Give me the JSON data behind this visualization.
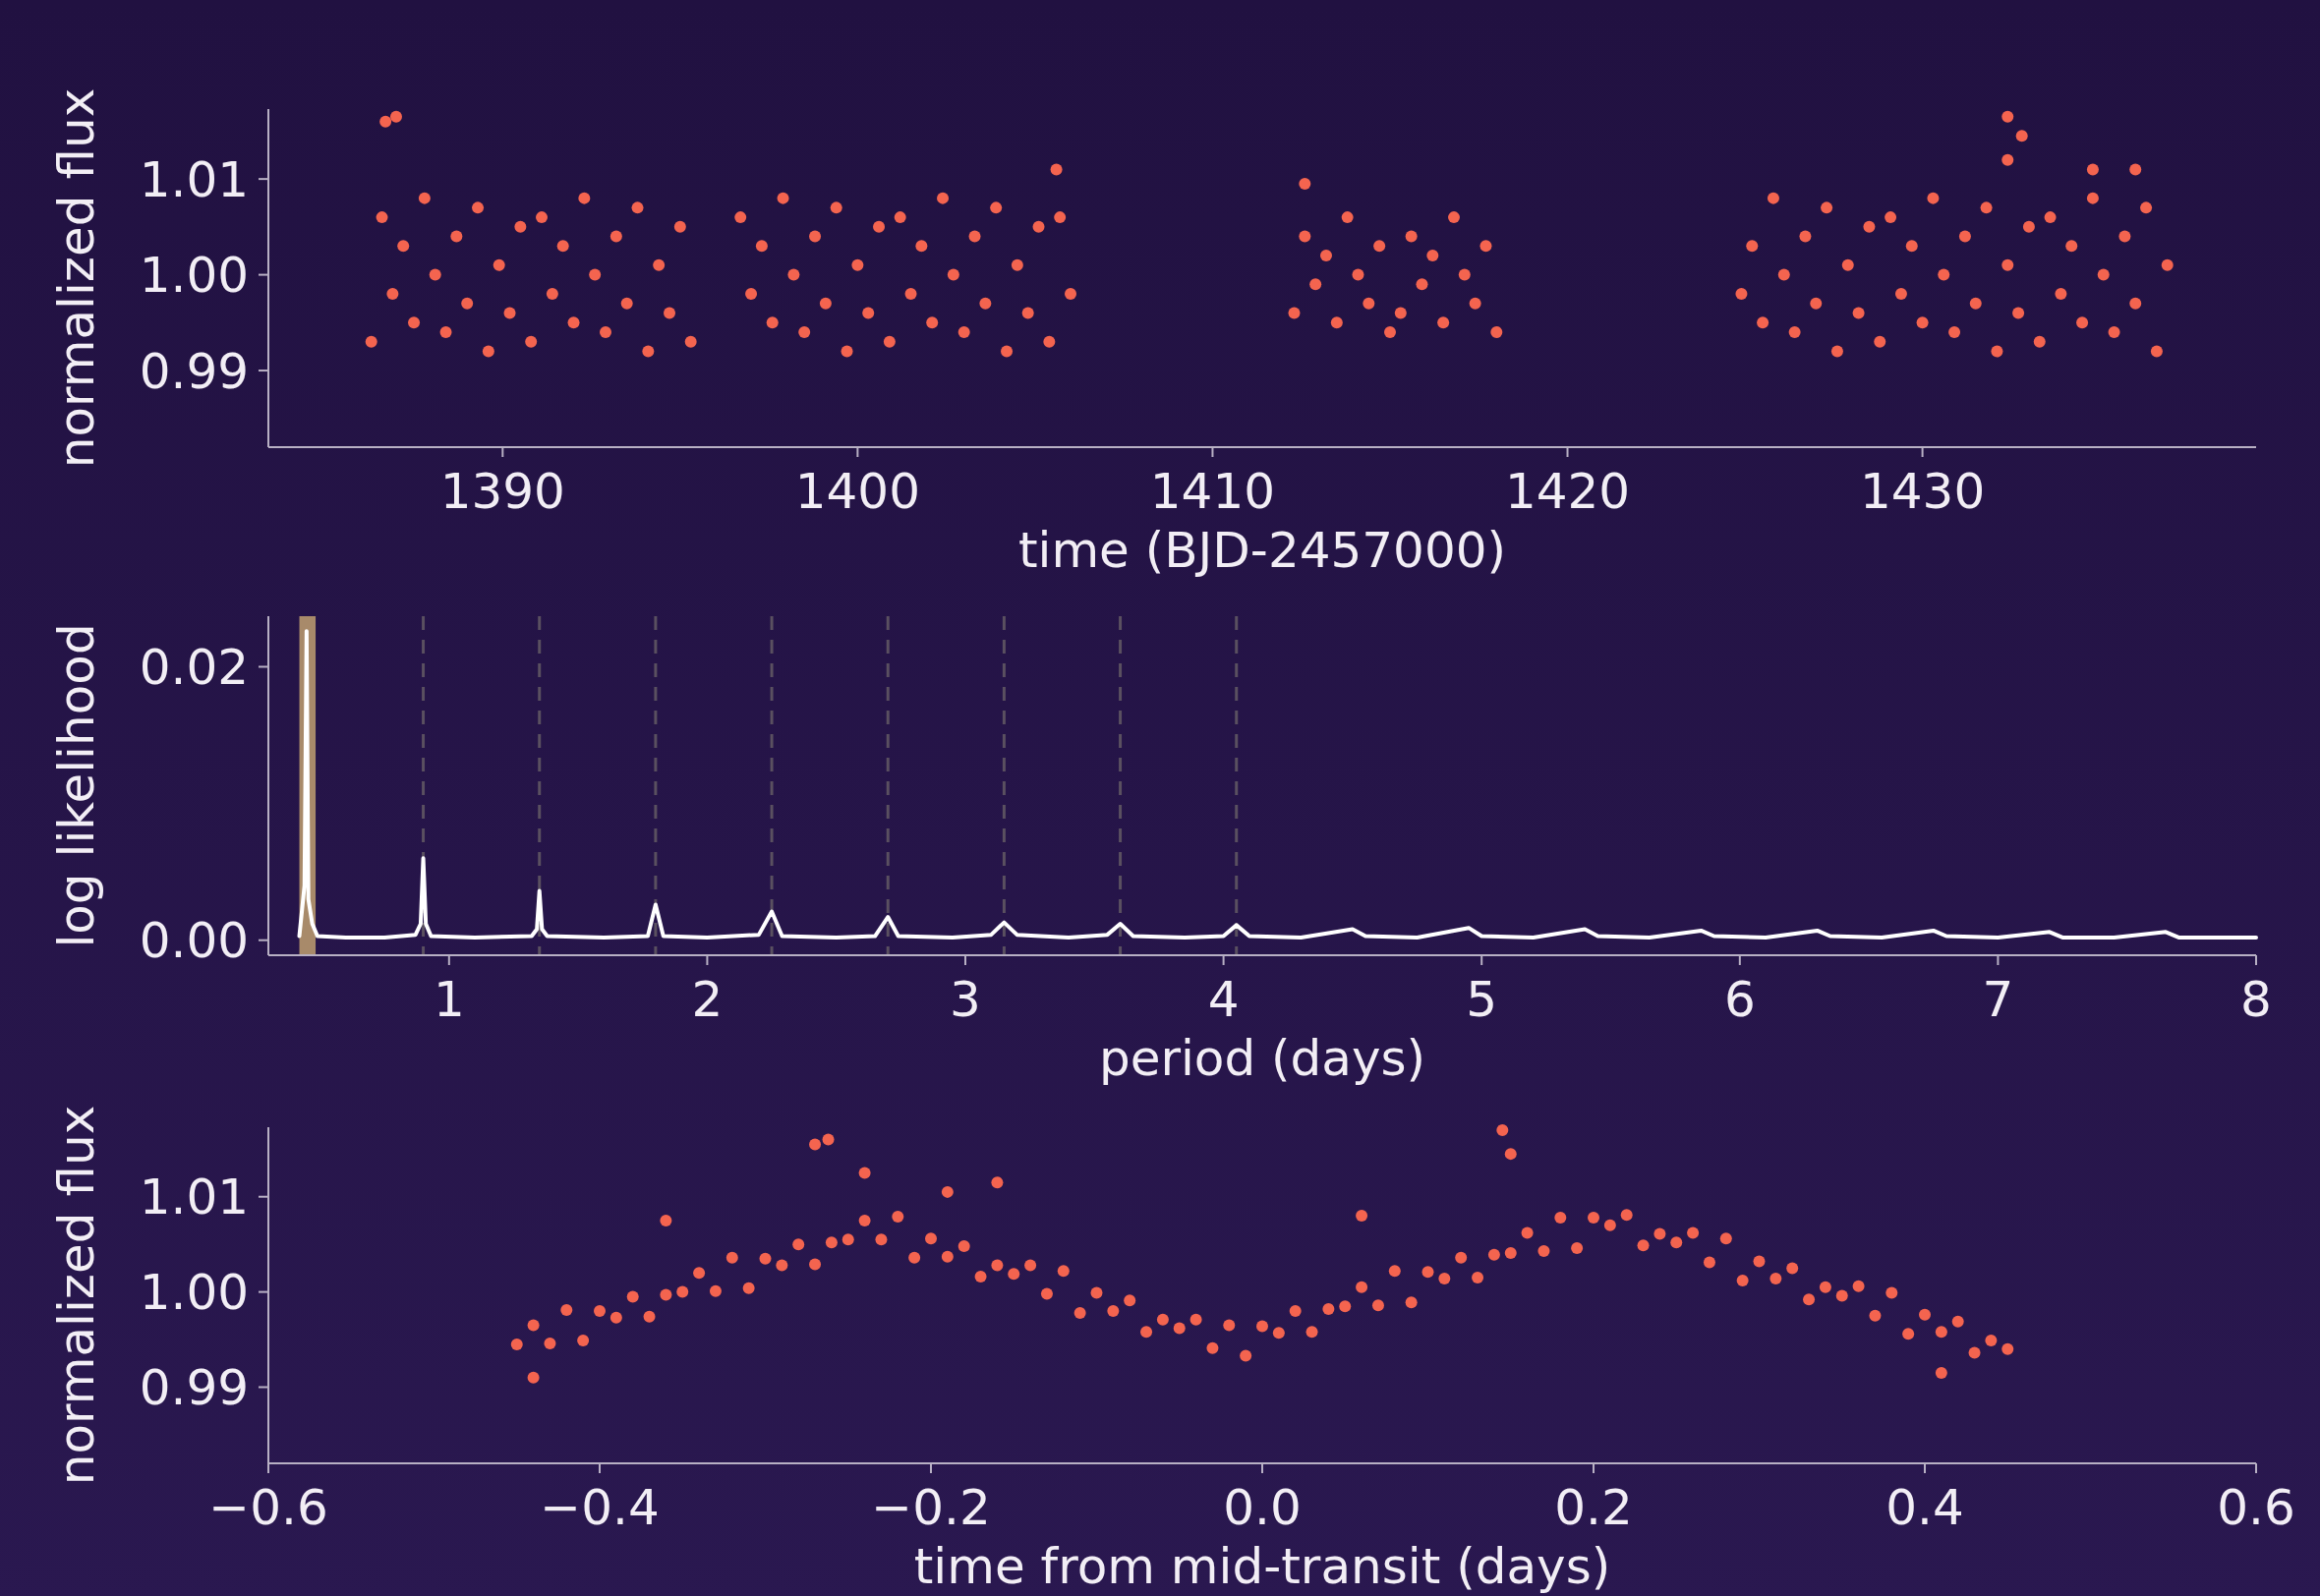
{
  "chart_data": [
    {
      "type": "scatter",
      "xlabel": "time (BJD-2457000)",
      "ylabel": "normalized flux",
      "color": "#f4644f",
      "marker": "circle",
      "xlim": [
        1383.4,
        1439.4
      ],
      "ylim": [
        0.982,
        1.0173
      ],
      "xticks": [
        1390,
        1400,
        1410,
        1420,
        1430
      ],
      "yticks": [
        {
          "value": 0.99,
          "label": "0.99"
        },
        {
          "value": 1.0,
          "label": "1.00"
        },
        {
          "value": 1.01,
          "label": "1.01"
        }
      ],
      "x": [
        1386.3,
        1386.6,
        1386.9,
        1387.2,
        1387.5,
        1387.8,
        1388.1,
        1388.4,
        1388.7,
        1389.0,
        1389.3,
        1389.6,
        1389.9,
        1390.2,
        1390.5,
        1390.8,
        1391.1,
        1391.4,
        1391.7,
        1392.0,
        1392.3,
        1392.6,
        1392.9,
        1393.2,
        1393.5,
        1393.8,
        1394.1,
        1394.4,
        1394.7,
        1395.0,
        1395.3,
        1396.7,
        1397.0,
        1397.3,
        1397.6,
        1397.9,
        1398.2,
        1398.5,
        1398.8,
        1399.1,
        1399.4,
        1399.7,
        1400.0,
        1400.3,
        1400.6,
        1400.9,
        1401.2,
        1401.5,
        1401.8,
        1402.1,
        1402.4,
        1402.7,
        1403.0,
        1403.3,
        1403.6,
        1403.9,
        1404.2,
        1404.5,
        1404.8,
        1405.1,
        1405.4,
        1405.7,
        1406.0,
        1412.3,
        1412.6,
        1412.9,
        1413.2,
        1413.5,
        1413.8,
        1414.1,
        1414.4,
        1414.7,
        1415.0,
        1415.3,
        1415.6,
        1415.9,
        1416.2,
        1416.5,
        1416.8,
        1417.1,
        1417.4,
        1417.7,
        1418.0,
        1424.9,
        1425.2,
        1425.5,
        1425.8,
        1426.1,
        1426.4,
        1426.7,
        1427.0,
        1427.3,
        1427.6,
        1427.9,
        1428.2,
        1428.5,
        1428.8,
        1429.1,
        1429.4,
        1429.7,
        1430.0,
        1430.3,
        1430.6,
        1430.9,
        1431.2,
        1431.5,
        1431.8,
        1432.1,
        1432.4,
        1432.7,
        1433.0,
        1433.3,
        1433.6,
        1433.9,
        1434.2,
        1434.5,
        1434.8,
        1435.1,
        1435.4,
        1435.7,
        1436.0,
        1436.3,
        1436.6,
        1436.9,
        1386.7,
        1387.0,
        1405.6,
        1412.6,
        1432.4,
        1432.8,
        1432.4,
        1434.8,
        1436.0
      ],
      "values": [
        0.993,
        1.006,
        0.998,
        1.003,
        0.995,
        1.008,
        1.0,
        0.994,
        1.004,
        0.997,
        1.007,
        0.992,
        1.001,
        0.996,
        1.005,
        0.993,
        1.006,
        0.998,
        1.003,
        0.995,
        1.008,
        1.0,
        0.994,
        1.004,
        0.997,
        1.007,
        0.992,
        1.001,
        0.996,
        1.005,
        0.993,
        1.006,
        0.998,
        1.003,
        0.995,
        1.008,
        1.0,
        0.994,
        1.004,
        0.997,
        1.007,
        0.992,
        1.001,
        0.996,
        1.005,
        0.993,
        1.006,
        0.998,
        1.003,
        0.995,
        1.008,
        1.0,
        0.994,
        1.004,
        0.997,
        1.007,
        0.992,
        1.001,
        0.996,
        1.005,
        0.993,
        1.006,
        0.998,
        0.996,
        1.004,
        0.999,
        1.002,
        0.995,
        1.006,
        1.0,
        0.997,
        1.003,
        0.994,
        0.996,
        1.004,
        0.999,
        1.002,
        0.995,
        1.006,
        1.0,
        0.997,
        1.003,
        0.994,
        0.998,
        1.003,
        0.995,
        1.008,
        1.0,
        0.994,
        1.004,
        0.997,
        1.007,
        0.992,
        1.001,
        0.996,
        1.005,
        0.993,
        1.006,
        0.998,
        1.003,
        0.995,
        1.008,
        1.0,
        0.994,
        1.004,
        0.997,
        1.007,
        0.992,
        1.001,
        0.996,
        1.005,
        0.993,
        1.006,
        0.998,
        1.003,
        0.995,
        1.008,
        1.0,
        0.994,
        1.004,
        0.997,
        1.007,
        0.992,
        1.001,
        1.016,
        1.0165,
        1.011,
        1.0095,
        1.0165,
        1.0145,
        1.012,
        1.011,
        1.011
      ]
    },
    {
      "type": "line",
      "xlabel": "period (days)",
      "ylabel": "log likelihood",
      "xlim": [
        0.3,
        8
      ],
      "ylim": [
        -0.0011,
        0.0237
      ],
      "xticks": [
        1,
        2,
        3,
        4,
        5,
        6,
        7,
        8
      ],
      "yticks": [
        {
          "value": 0,
          "label": "0.00"
        },
        {
          "value": 0.02,
          "label": "0.02"
        }
      ],
      "bands": [
        {
          "axis": "x",
          "from": 0.42,
          "to": 0.483,
          "color": "#a88a6a"
        }
      ],
      "ref_lines": [
        {
          "axis": "x",
          "value": 0.9,
          "color": "#5a5060",
          "line_style": "dashed"
        },
        {
          "axis": "x",
          "value": 1.35,
          "color": "#5a5060",
          "line_style": "dashed"
        },
        {
          "axis": "x",
          "value": 1.8,
          "color": "#5a5060",
          "line_style": "dashed"
        },
        {
          "axis": "x",
          "value": 2.25,
          "color": "#5a5060",
          "line_style": "dashed"
        },
        {
          "axis": "x",
          "value": 2.7,
          "color": "#5a5060",
          "line_style": "dashed"
        },
        {
          "axis": "x",
          "value": 3.15,
          "color": "#5a5060",
          "line_style": "dashed"
        },
        {
          "axis": "x",
          "value": 3.6,
          "color": "#5a5060",
          "line_style": "dashed"
        },
        {
          "axis": "x",
          "value": 4.05,
          "color": "#5a5060",
          "line_style": "dashed"
        }
      ],
      "series": [
        {
          "color": "#ffffff",
          "x": [
            0.42,
            0.44,
            0.448,
            0.455,
            0.47,
            0.49,
            0.6,
            0.75,
            0.87,
            0.89,
            0.9,
            0.91,
            0.93,
            1.1,
            1.32,
            1.34,
            1.35,
            1.36,
            1.38,
            1.6,
            1.77,
            1.8,
            1.83,
            2.0,
            2.2,
            2.25,
            2.29,
            2.5,
            2.65,
            2.7,
            2.74,
            2.95,
            3.1,
            3.15,
            3.2,
            3.4,
            3.55,
            3.6,
            3.65,
            3.85,
            4.0,
            4.05,
            4.1,
            4.3,
            4.5,
            4.55,
            4.75,
            4.95,
            5.0,
            5.2,
            5.4,
            5.45,
            5.65,
            5.85,
            5.9,
            6.1,
            6.3,
            6.35,
            6.55,
            6.75,
            6.8,
            7.0,
            7.2,
            7.25,
            7.45,
            7.65,
            7.7,
            8.0
          ],
          "values": [
            0.0003,
            0.004,
            0.0226,
            0.003,
            0.0012,
            0.0003,
            0.0002,
            0.0002,
            0.0004,
            0.0012,
            0.006,
            0.0012,
            0.0003,
            0.0002,
            0.0003,
            0.0008,
            0.0036,
            0.0008,
            0.0003,
            0.0002,
            0.0003,
            0.0026,
            0.0003,
            0.0002,
            0.0004,
            0.0021,
            0.0003,
            0.0002,
            0.0003,
            0.0017,
            0.0003,
            0.0002,
            0.0004,
            0.0013,
            0.0004,
            0.0002,
            0.0004,
            0.0012,
            0.0003,
            0.0002,
            0.0003,
            0.0011,
            0.0003,
            0.0002,
            0.0008,
            0.0003,
            0.0002,
            0.0009,
            0.0003,
            0.0002,
            0.0008,
            0.0003,
            0.0002,
            0.0007,
            0.0003,
            0.0002,
            0.0007,
            0.0003,
            0.0002,
            0.0007,
            0.0003,
            0.0002,
            0.0006,
            0.0002,
            0.0002,
            0.0006,
            0.0002,
            0.0002
          ]
        }
      ]
    },
    {
      "type": "scatter",
      "xlabel": "time from mid-transit (days)",
      "ylabel": "normalized flux",
      "color": "#f4644f",
      "marker": "circle",
      "xlim": [
        -0.6,
        0.6
      ],
      "ylim": [
        0.982,
        1.0173
      ],
      "xticks": [
        {
          "value": -0.6,
          "label": "−0.6"
        },
        {
          "value": -0.4,
          "label": "−0.4"
        },
        {
          "value": -0.2,
          "label": "−0.2"
        },
        {
          "value": 0,
          "label": "0.0"
        },
        {
          "value": 0.2,
          "label": "0.2"
        },
        {
          "value": 0.4,
          "label": "0.4"
        },
        {
          "value": 0.6,
          "label": "0.6"
        }
      ],
      "yticks": [
        {
          "value": 0.99,
          "label": "0.99"
        },
        {
          "value": 1.0,
          "label": "1.00"
        },
        {
          "value": 1.01,
          "label": "1.01"
        }
      ],
      "x": [
        -0.45,
        -0.44,
        -0.43,
        -0.42,
        -0.41,
        -0.4,
        -0.39,
        -0.38,
        -0.37,
        -0.36,
        -0.35,
        -0.34,
        -0.33,
        -0.32,
        -0.31,
        -0.3,
        -0.29,
        -0.28,
        -0.27,
        -0.26,
        -0.25,
        -0.24,
        -0.23,
        -0.22,
        -0.21,
        -0.2,
        -0.19,
        -0.18,
        -0.17,
        -0.16,
        -0.15,
        -0.14,
        -0.13,
        -0.12,
        -0.11,
        -0.1,
        -0.09,
        -0.08,
        -0.07,
        -0.06,
        -0.05,
        -0.04,
        -0.03,
        -0.02,
        -0.01,
        0.0,
        0.01,
        0.02,
        0.03,
        0.04,
        0.05,
        0.06,
        0.07,
        0.08,
        0.09,
        0.1,
        0.11,
        0.12,
        0.13,
        0.14,
        0.15,
        0.16,
        0.17,
        0.18,
        0.19,
        0.2,
        0.21,
        0.22,
        0.23,
        0.24,
        0.25,
        0.26,
        0.27,
        0.28,
        0.29,
        0.3,
        0.31,
        0.32,
        0.33,
        0.34,
        0.35,
        0.36,
        0.37,
        0.38,
        0.39,
        0.4,
        0.41,
        0.42,
        0.43,
        0.44,
        0.45,
        -0.27,
        -0.262,
        -0.24,
        -0.19,
        -0.16,
        0.145,
        0.15,
        0.06,
        -0.44,
        0.41,
        -0.36
      ],
      "values": [
        0.9945,
        0.9965,
        0.9946,
        0.9981,
        0.9949,
        0.998,
        0.9973,
        0.9995,
        0.9974,
        0.9997,
        1.0,
        1.002,
        1.0001,
        1.0036,
        1.0004,
        1.0035,
        1.0028,
        1.005,
        1.0029,
        1.0052,
        1.0055,
        1.0075,
        1.0055,
        1.0079,
        1.0036,
        1.0056,
        1.0037,
        1.0048,
        1.0016,
        1.0028,
        1.0019,
        1.0028,
        0.9998,
        1.0022,
        0.9978,
        0.9999,
        0.998,
        0.9991,
        0.9958,
        0.9971,
        0.9962,
        0.9971,
        0.9941,
        0.9965,
        0.9933,
        0.9964,
        0.9957,
        0.998,
        0.9958,
        0.9982,
        0.9985,
        1.0005,
        0.9986,
        1.0022,
        0.9989,
        1.0021,
        1.0014,
        1.0036,
        1.0015,
        1.0039,
        1.0041,
        1.0062,
        1.0043,
        1.0078,
        1.0046,
        1.0078,
        1.007,
        1.0081,
        1.0049,
        1.0061,
        1.0052,
        1.0062,
        1.0031,
        1.0056,
        1.0012,
        1.0032,
        1.0014,
        1.0025,
        0.9992,
        1.0005,
        0.9996,
        1.0006,
        0.9975,
        0.9999,
        0.9956,
        0.9976,
        0.9958,
        0.9969,
        0.9936,
        0.9949,
        0.994,
        1.0155,
        1.016,
        1.0125,
        1.0105,
        1.0115,
        1.017,
        1.0145,
        1.008,
        0.991,
        0.9915,
        1.0075
      ]
    }
  ]
}
